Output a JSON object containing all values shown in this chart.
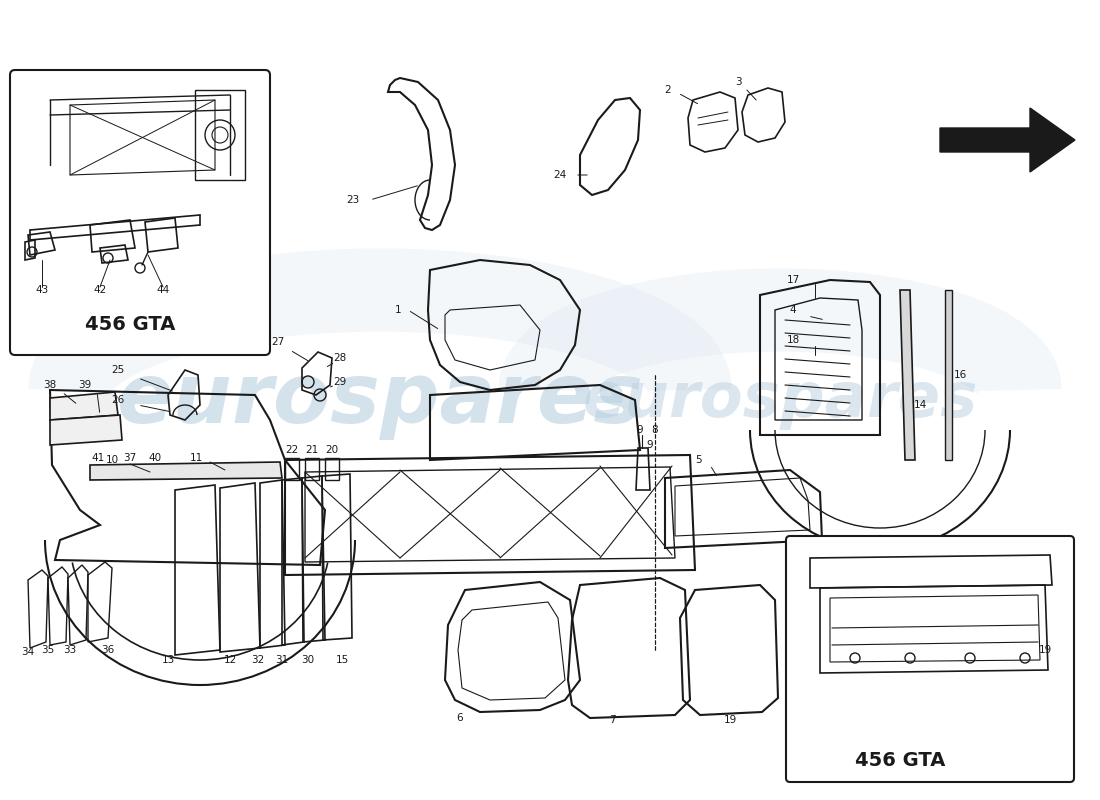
{
  "background_color": "#ffffff",
  "diagram_color": "#1a1a1a",
  "watermark_text": "eurospares",
  "watermark_color": "#b8cfe0",
  "fig_width": 11.0,
  "fig_height": 8.0,
  "dpi": 100,
  "lw": 1.0,
  "inset1_label": "456 GTA",
  "inset2_label": "456 GTA",
  "label_color": "#cc0000",
  "label_fontsize": 13
}
